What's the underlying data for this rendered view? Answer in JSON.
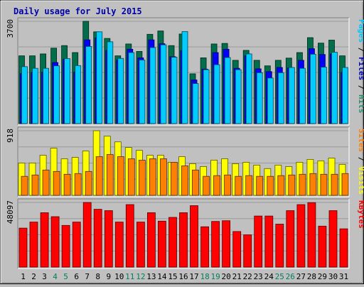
{
  "chart_data": {
    "type": "bar",
    "title": "Daily usage for July 2015",
    "categories": [
      "1",
      "2",
      "3",
      "4",
      "5",
      "6",
      "7",
      "8",
      "9",
      "10",
      "11",
      "12",
      "13",
      "14",
      "15",
      "16",
      "17",
      "18",
      "19",
      "20",
      "21",
      "22",
      "23",
      "24",
      "25",
      "26",
      "27",
      "28",
      "29",
      "30",
      "31"
    ],
    "weekend_days": [
      "4",
      "5",
      "11",
      "12",
      "18",
      "19",
      "25",
      "26"
    ],
    "panels": [
      {
        "id": "hits",
        "max_label": "3700",
        "ymax": 3700,
        "side_label_parts": [
          {
            "text": "Pages",
            "color": "#00c8ff"
          },
          {
            "text": " / ",
            "color": "#000000"
          },
          {
            "text": "Files",
            "color": "#0000c0"
          },
          {
            "text": " / ",
            "color": "#000000"
          },
          {
            "text": "Hits",
            "color": "#2b8a6d"
          }
        ],
        "series": [
          {
            "name": "Hits",
            "color": "#006d4b",
            "values": [
              2450,
              2450,
              2520,
              2730,
              2820,
              2570,
              3700,
              3320,
              3080,
              2450,
              2880,
              2610,
              3230,
              3350,
              2820,
              3240,
              1800,
              2380,
              2880,
              2900,
              2290,
              2650,
              2290,
              2090,
              2290,
              2370,
              2570,
              3110,
              2910,
              3020,
              2450
            ]
          },
          {
            "name": "Files",
            "color": "#0000ff",
            "values": [
              1810,
              1850,
              1860,
              2210,
              2330,
              1860,
              3030,
              3100,
              2650,
              2300,
              2690,
              2380,
              3030,
              2890,
              2420,
              2640,
              1580,
              1970,
              2570,
              2690,
              2000,
              2450,
              1980,
              1880,
              2030,
              2010,
              2290,
              2710,
              2500,
              2520,
              1850
            ]
          },
          {
            "name": "Pages",
            "color": "#00ccff",
            "values": [
              2060,
              2000,
              2000,
              2090,
              2350,
              2100,
              2790,
              3320,
              2960,
              2360,
              2570,
              2300,
              2750,
              2850,
              2400,
              3330,
              1450,
              1950,
              2130,
              2390,
              1950,
              2520,
              1840,
              1650,
              1840,
              2030,
              2000,
              2510,
              2040,
              2580,
              2030
            ]
          }
        ]
      },
      {
        "id": "visits",
        "max_label": "918",
        "ymax": 918,
        "side_label_parts": [
          {
            "text": "Sites",
            "color": "#ff8000"
          },
          {
            "text": " / ",
            "color": "#000000"
          },
          {
            "text": "Visits",
            "color": "#ffff00"
          }
        ],
        "series": [
          {
            "name": "Visits",
            "color": "#ffff00",
            "values": [
              460,
              460,
              570,
              670,
              520,
              540,
              630,
              918,
              840,
              760,
              680,
              640,
              570,
              570,
              470,
              550,
              450,
              410,
              500,
              520,
              450,
              470,
              430,
              380,
              430,
              410,
              470,
              510,
              490,
              530,
              440
            ]
          },
          {
            "name": "Sites",
            "color": "#ff8000",
            "values": [
              270,
              290,
              360,
              340,
              300,
              310,
              340,
              550,
              580,
              550,
              520,
              500,
              520,
              520,
              470,
              420,
              360,
              270,
              280,
              290,
              270,
              280,
              270,
              270,
              280,
              290,
              300,
              310,
              300,
              300,
              310
            ]
          }
        ]
      },
      {
        "id": "kbytes",
        "max_label": "48097",
        "ymax": 48097,
        "side_label_parts": [
          {
            "text": "KBytes",
            "color": "#ff0000"
          }
        ],
        "series": [
          {
            "name": "KBytes",
            "color": "#ff0000",
            "values": [
              29000,
              33500,
              40500,
              37500,
              31000,
              33500,
              48097,
              43000,
              42000,
              33500,
              46500,
              33500,
              40500,
              34200,
              37000,
              40500,
              45700,
              30000,
              34000,
              34500,
              26500,
              24000,
              38000,
              38000,
              32000,
              42000,
              46500,
              48000,
              30500,
              42000,
              28500
            ]
          }
        ]
      }
    ]
  }
}
